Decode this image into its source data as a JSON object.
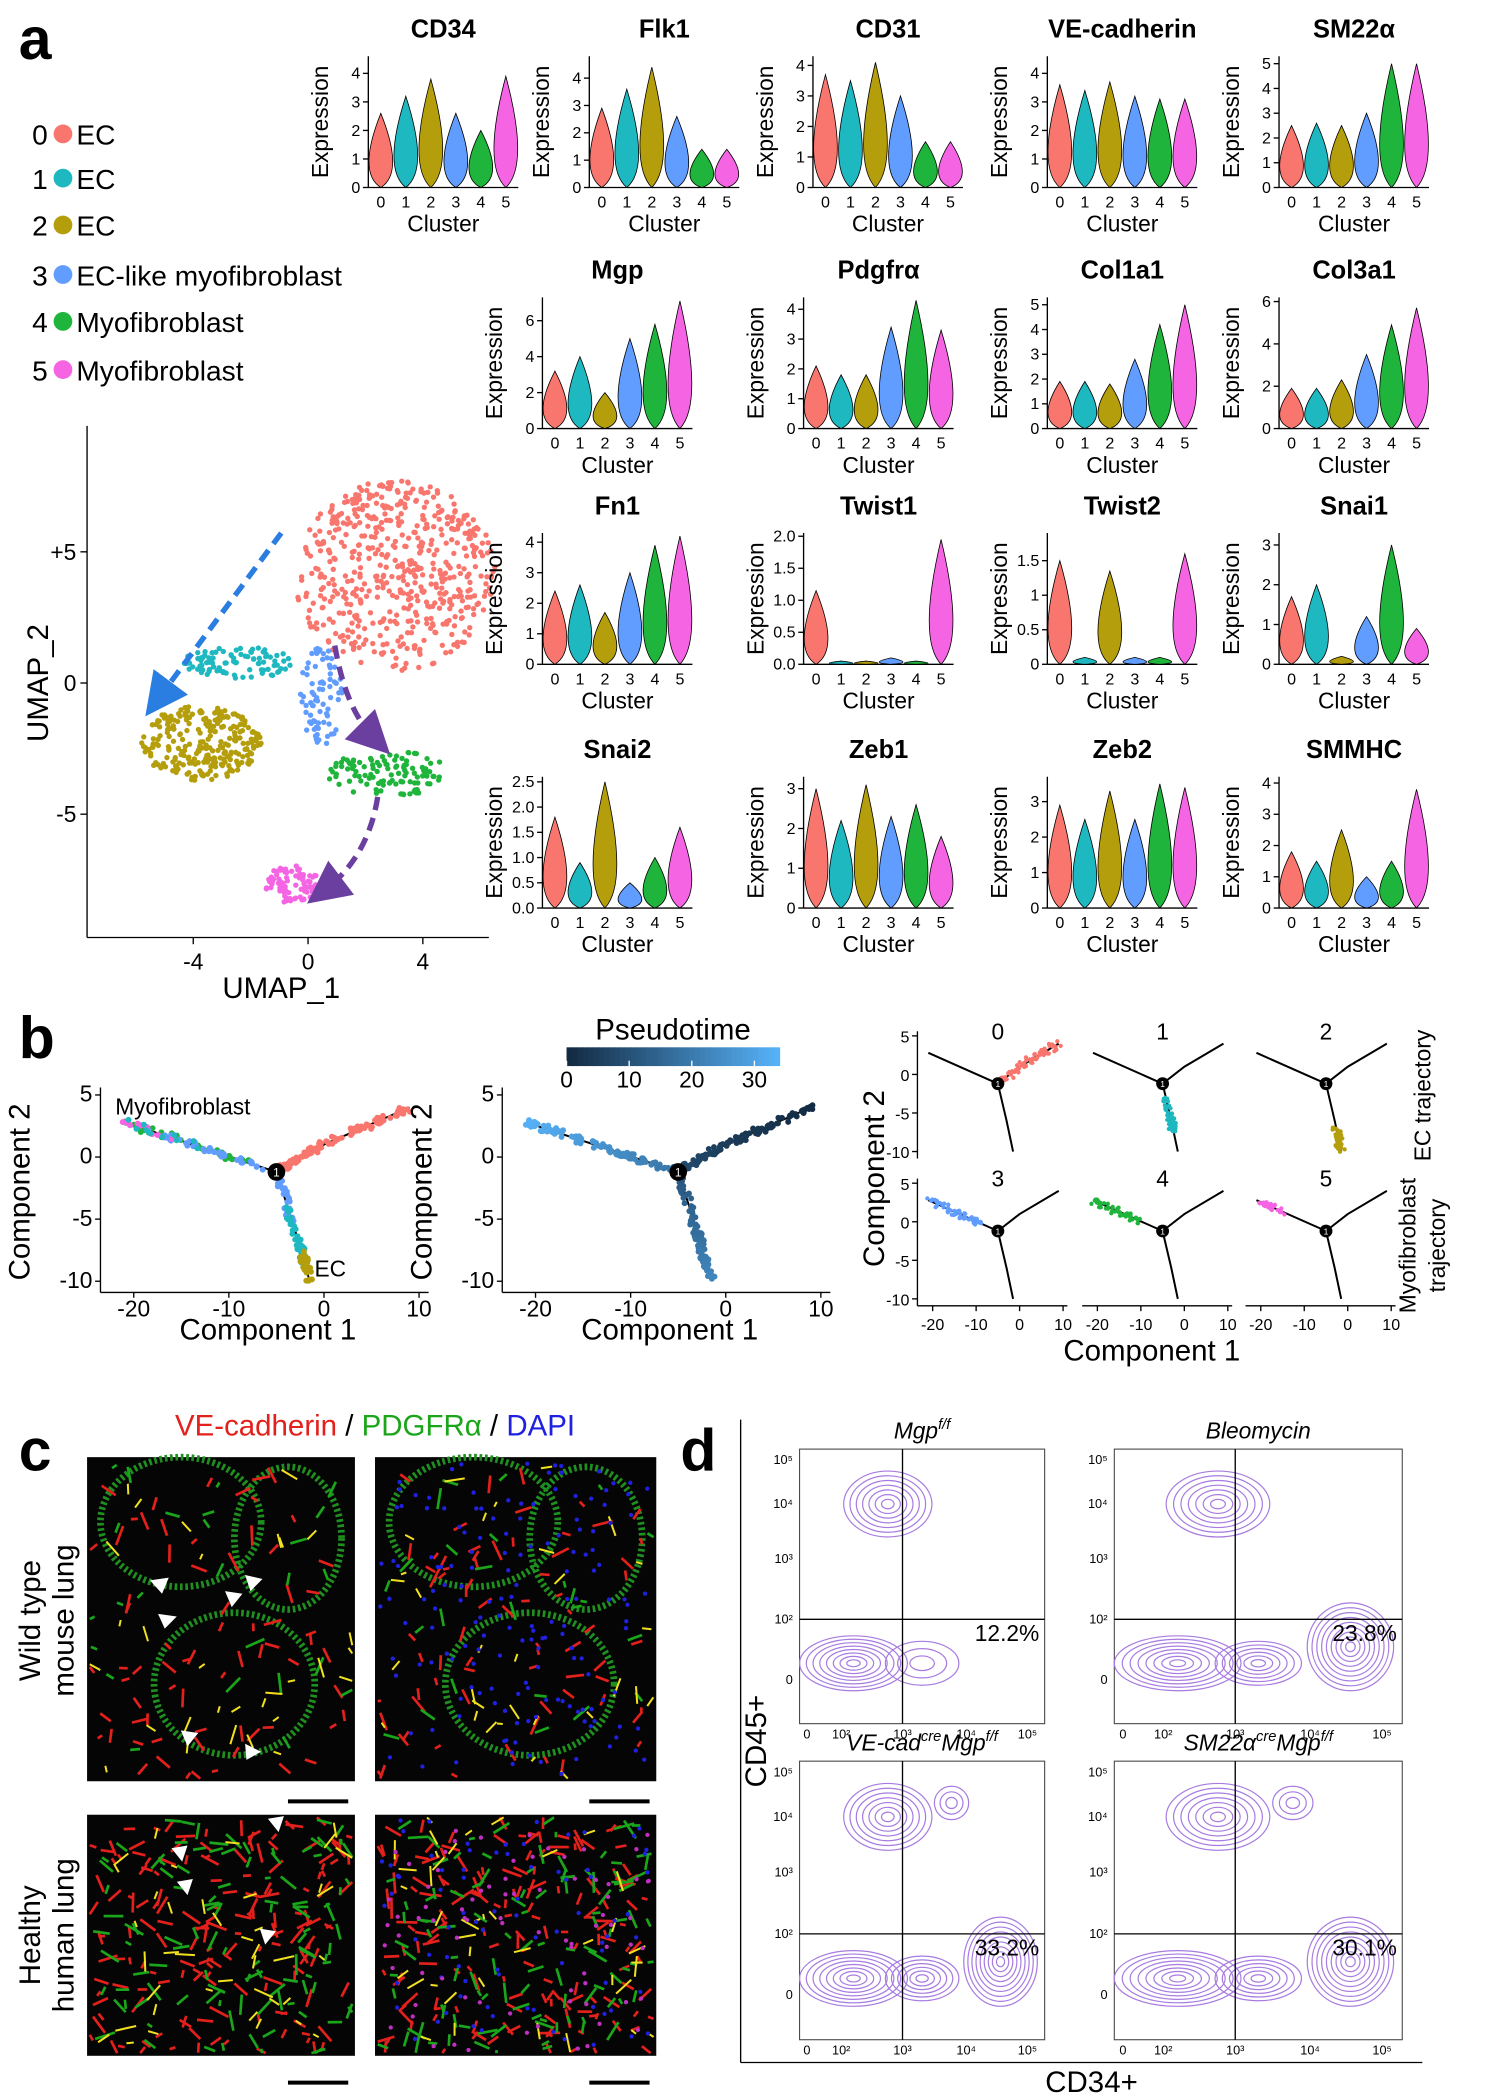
{
  "figure": {
    "panel_a": {
      "label": "a",
      "clusters": [
        {
          "id": "0",
          "name": "EC",
          "color": "#f8766d"
        },
        {
          "id": "1",
          "name": "EC",
          "color": "#1eb8c0"
        },
        {
          "id": "2",
          "name": "EC",
          "color": "#b59e0c"
        },
        {
          "id": "3",
          "name": "EC-like myofibroblast",
          "color": "#619cff"
        },
        {
          "id": "4",
          "name": "Myofibroblast",
          "color": "#1fb53c"
        },
        {
          "id": "5",
          "name": "Myofibroblast",
          "color": "#f564e3"
        }
      ],
      "violin_xlabel": "Cluster",
      "violin_ylabel": "Expression",
      "violins": [
        {
          "gene": "CD34",
          "ylim": [
            0,
            4.6
          ],
          "yticks": [
            0,
            1,
            2,
            3,
            4
          ],
          "values": [
            2.6,
            3.2,
            3.8,
            2.6,
            2.0,
            3.9
          ]
        },
        {
          "gene": "Flk1",
          "ylim": [
            0,
            4.8
          ],
          "yticks": [
            0,
            1,
            2,
            3,
            4
          ],
          "values": [
            2.9,
            3.6,
            4.4,
            2.6,
            1.4,
            1.4
          ]
        },
        {
          "gene": "CD31",
          "ylim": [
            0,
            4.3
          ],
          "yticks": [
            0,
            1,
            2,
            3,
            4
          ],
          "values": [
            3.7,
            3.5,
            4.1,
            3.0,
            1.5,
            1.5
          ]
        },
        {
          "gene": "VE-cadherin",
          "ylim": [
            0,
            4.6
          ],
          "yticks": [
            0,
            1,
            2,
            3,
            4
          ],
          "values": [
            3.6,
            3.4,
            3.7,
            3.2,
            3.1,
            3.1
          ]
        },
        {
          "gene": "SM22α",
          "ylim": [
            0,
            5.3
          ],
          "yticks": [
            0,
            1,
            2,
            3,
            4,
            5
          ],
          "values": [
            2.5,
            2.6,
            2.5,
            3.0,
            5.0,
            5.0
          ]
        },
        {
          "gene": "Mgp",
          "ylim": [
            0,
            7.3
          ],
          "yticks": [
            0,
            2,
            4,
            6
          ],
          "values": [
            3.2,
            4.0,
            2.0,
            5.0,
            5.8,
            7.1
          ]
        },
        {
          "gene": "Pdgfrα",
          "ylim": [
            0,
            4.4
          ],
          "yticks": [
            0,
            1,
            2,
            3,
            4
          ],
          "values": [
            2.1,
            1.8,
            1.8,
            3.4,
            4.3,
            3.3
          ]
        },
        {
          "gene": "Col1a1",
          "ylim": [
            0,
            5.3
          ],
          "yticks": [
            0,
            1,
            2,
            3,
            4,
            5
          ],
          "values": [
            1.9,
            1.9,
            1.8,
            2.8,
            4.2,
            5.0
          ]
        },
        {
          "gene": "Col3a1",
          "ylim": [
            0,
            6.2
          ],
          "yticks": [
            0,
            2,
            4,
            6
          ],
          "values": [
            1.9,
            1.9,
            2.3,
            3.5,
            4.9,
            5.7
          ]
        },
        {
          "gene": "Fn1",
          "ylim": [
            0,
            4.3
          ],
          "yticks": [
            0,
            1,
            2,
            3,
            4
          ],
          "values": [
            2.4,
            2.6,
            1.7,
            3.0,
            3.9,
            4.2
          ]
        },
        {
          "gene": "Twist1",
          "ylim": [
            0,
            2.05
          ],
          "yticks": [
            {
              "value": 0,
              "label": "0.0"
            },
            0.5,
            {
              "value": 1,
              "label": "1.0"
            },
            1.5,
            {
              "value": 2,
              "label": "2.0"
            }
          ],
          "values": [
            1.15,
            0.05,
            0.05,
            0.1,
            0.05,
            1.95
          ]
        },
        {
          "gene": "Twist2",
          "ylim": [
            0,
            1.9
          ],
          "yticks": [
            0,
            0.5,
            1,
            1.5
          ],
          "values": [
            1.5,
            0.1,
            1.35,
            0.1,
            0.1,
            1.6
          ]
        },
        {
          "gene": "Snai1",
          "ylim": [
            0,
            3.3
          ],
          "yticks": [
            0,
            1,
            2,
            3
          ],
          "values": [
            1.7,
            2.0,
            0.2,
            1.2,
            3.0,
            0.9
          ]
        },
        {
          "gene": "Snai2",
          "ylim": [
            0,
            2.6
          ],
          "yticks": [
            {
              "value": 0,
              "label": "0.0"
            },
            0.5,
            {
              "value": 1,
              "label": "1.0"
            },
            1.5,
            {
              "value": 2,
              "label": "2.0"
            },
            2.5
          ],
          "values": [
            1.8,
            0.9,
            2.5,
            0.5,
            1.0,
            1.6
          ]
        },
        {
          "gene": "Zeb1",
          "ylim": [
            0,
            3.3
          ],
          "yticks": [
            0,
            1,
            2,
            3
          ],
          "values": [
            3.0,
            2.2,
            3.1,
            2.3,
            2.6,
            1.8
          ]
        },
        {
          "gene": "Zeb2",
          "ylim": [
            0,
            3.7
          ],
          "yticks": [
            0,
            1,
            2,
            3
          ],
          "values": [
            2.9,
            2.5,
            3.3,
            2.5,
            3.5,
            3.4
          ]
        },
        {
          "gene": "SMMHC",
          "ylim": [
            0,
            4.2
          ],
          "yticks": [
            0,
            1,
            2,
            3,
            4
          ],
          "values": [
            1.8,
            1.5,
            2.5,
            1.0,
            1.5,
            3.8
          ]
        }
      ],
      "umap": {
        "xlabel": "UMAP_1",
        "ylabel": "UMAP_2",
        "xlim": [
          -7.7,
          6.3
        ],
        "ylim": [
          -9.7,
          9.8
        ],
        "xticks": [
          -4,
          0,
          4
        ],
        "yticks": [
          {
            "value": 5,
            "label": "+5"
          },
          0,
          -5
        ]
      }
    },
    "panel_b": {
      "label": "b",
      "xlabel": "Component 1",
      "ylabel": "Component 2",
      "xlim": [
        -23.5,
        11
      ],
      "ylim": [
        -10.9,
        5.6
      ],
      "xticks": [
        -20,
        -10,
        0,
        10
      ],
      "yticks": [
        5,
        0,
        -5,
        -10
      ],
      "annotations": [
        "Myofibroblast",
        "EC"
      ],
      "branch_point_label": "1",
      "pseudotime": {
        "label": "Pseudotime",
        "lim": [
          0,
          34
        ],
        "ticks": [
          0,
          10,
          20,
          30
        ],
        "colors": [
          "#132b43",
          "#56b1f7"
        ]
      },
      "facets": [
        "0",
        "1",
        "2",
        "3",
        "4",
        "5"
      ],
      "row_labels": [
        [
          "EC trajectory"
        ],
        [
          "Myofibroblast",
          "trajectory"
        ]
      ]
    },
    "panel_c": {
      "label": "c",
      "title": [
        {
          "text": "VE-cadherin",
          "color": "#e3201b"
        },
        {
          "text": " / ",
          "color": "#000000"
        },
        {
          "text": "PDGFRα",
          "color": "#1aa51a"
        },
        {
          "text": " / ",
          "color": "#000000"
        },
        {
          "text": "DAPI",
          "color": "#2020e0"
        }
      ],
      "row_labels": [
        [
          "Wild type",
          "mouse lung"
        ],
        [
          "Healthy",
          "human lung"
        ]
      ]
    },
    "panel_d": {
      "label": "d",
      "xlabel": "CD34+",
      "ylabel": "CD45+",
      "axis_ticks": [
        "0",
        "10²",
        "10³",
        "10⁴",
        "10⁵"
      ],
      "plots": [
        {
          "title": [
            {
              "text": "Mgp"
            },
            {
              "text": "f/f",
              "sup": true
            }
          ],
          "percent": {
            "value": 12.2,
            "label": "12.2%"
          }
        },
        {
          "title": [
            {
              "text": "Bleomycin"
            }
          ],
          "percent": {
            "value": 23.8,
            "label": "23.8%"
          }
        },
        {
          "title": [
            {
              "text": "VE-cad"
            },
            {
              "text": "cre",
              "sup": true
            },
            {
              "text": "Mgp"
            },
            {
              "text": "f/f",
              "sup": true
            }
          ],
          "percent": {
            "value": 33.2,
            "label": "33.2%"
          }
        },
        {
          "title": [
            {
              "text": "SM22α"
            },
            {
              "text": "cre",
              "sup": true
            },
            {
              "text": "Mgp"
            },
            {
              "text": "f/f",
              "sup": true
            }
          ],
          "percent": {
            "value": 30.1,
            "label": "30.1%"
          }
        }
      ]
    }
  }
}
